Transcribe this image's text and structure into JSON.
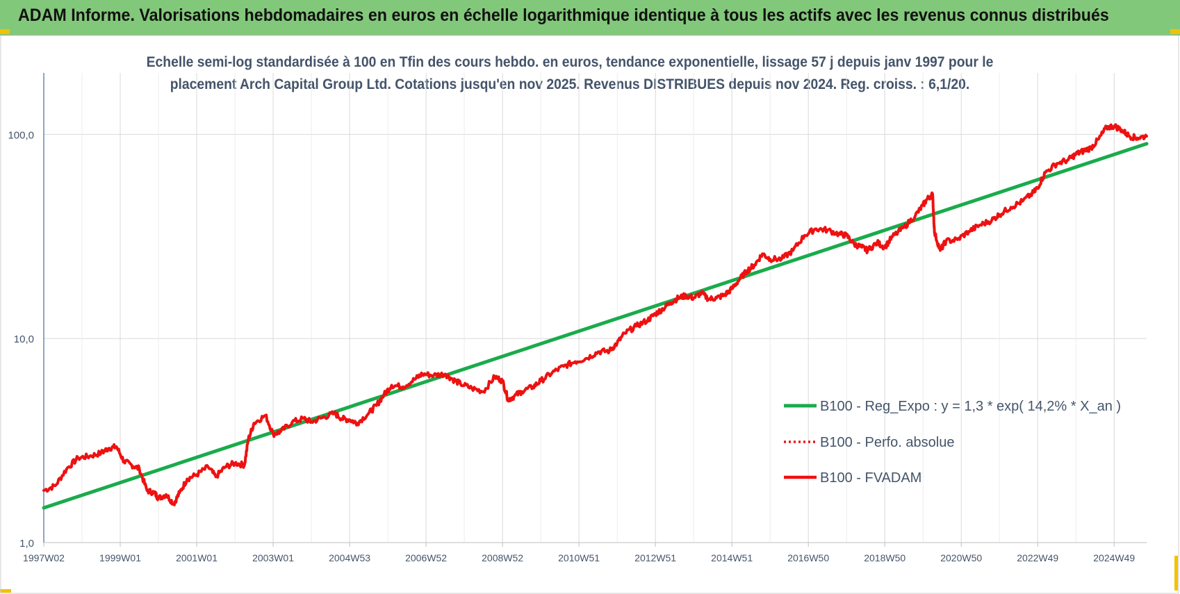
{
  "header": {
    "title": "ADAM Informe. Valorisations hebdomadaires en euros en échelle logarithmique identique à tous les actifs avec les revenus connus distribués"
  },
  "colors": {
    "banner": "#82c87a",
    "regression": "#1aab4b",
    "fvadam": "#ee1111",
    "perfo": "#ee1111",
    "accent_corners": "#f2c200",
    "grid": "#d9d9d9",
    "text": "#44546a"
  },
  "chart_data": {
    "type": "line",
    "subtitle_lines": [
      "Echelle semi-log standardisée à 100 en Tfin des cours hebdo. en euros, tendance exponentielle, lissage 57 j depuis janv 1997 pour le",
      "placement Arch Capital Group Ltd. Cotations jusqu'en nov 2025. Revenus DISTRIBUES depuis nov 2024.  Reg. croiss. : 6,1/20."
    ],
    "y_scale": "log",
    "ylim": [
      1,
      200
    ],
    "y_ticks": [
      {
        "value": 1,
        "label": "1,0"
      },
      {
        "value": 10,
        "label": "10,0"
      },
      {
        "value": 100,
        "label": "100,0"
      }
    ],
    "xlim": [
      1997.0,
      2025.85
    ],
    "x_ticks": [
      {
        "value": 1997.0,
        "label": "1997W02"
      },
      {
        "value": 1999.0,
        "label": "1999W01"
      },
      {
        "value": 2001.0,
        "label": "2001W01"
      },
      {
        "value": 2003.0,
        "label": "2003W01"
      },
      {
        "value": 2005.0,
        "label": "2004W53"
      },
      {
        "value": 2007.0,
        "label": "2006W52"
      },
      {
        "value": 2009.0,
        "label": "2008W52"
      },
      {
        "value": 2011.0,
        "label": "2010W51"
      },
      {
        "value": 2013.0,
        "label": "2012W51"
      },
      {
        "value": 2015.0,
        "label": "2014W51"
      },
      {
        "value": 2017.0,
        "label": "2016W50"
      },
      {
        "value": 2019.0,
        "label": "2018W50"
      },
      {
        "value": 2021.0,
        "label": "2020W50"
      },
      {
        "value": 2023.0,
        "label": "2022W49"
      },
      {
        "value": 2025.0,
        "label": "2024W49"
      }
    ],
    "grid": true,
    "legend_position": "right",
    "series": [
      {
        "name": "B100 - Reg_Expo : y = 1,3 * exp( 14,2% *  X_an )",
        "style": "solid",
        "color": "#1aab4b",
        "points": [
          [
            1997.0,
            1.48
          ],
          [
            2025.85,
            90.0
          ]
        ]
      },
      {
        "name": "B100 - Perfo. absolue",
        "style": "dotted",
        "color": "#ee1111",
        "points": []
      },
      {
        "name": "B100 - FVADAM",
        "style": "solid",
        "color": "#ee1111",
        "points": [
          [
            1997.0,
            1.8
          ],
          [
            1997.3,
            1.9
          ],
          [
            1997.6,
            2.3
          ],
          [
            1997.9,
            2.6
          ],
          [
            1998.2,
            2.65
          ],
          [
            1998.5,
            2.75
          ],
          [
            1998.7,
            2.9
          ],
          [
            1998.9,
            2.95
          ],
          [
            1999.1,
            2.5
          ],
          [
            1999.3,
            2.4
          ],
          [
            1999.5,
            2.3
          ],
          [
            1999.7,
            1.8
          ],
          [
            1999.9,
            1.75
          ],
          [
            2000.0,
            1.65
          ],
          [
            2000.2,
            1.72
          ],
          [
            2000.4,
            1.55
          ],
          [
            2000.55,
            1.75
          ],
          [
            2000.75,
            2.05
          ],
          [
            2001.0,
            2.15
          ],
          [
            2001.3,
            2.35
          ],
          [
            2001.5,
            2.1
          ],
          [
            2001.75,
            2.35
          ],
          [
            2002.0,
            2.45
          ],
          [
            2002.25,
            2.4
          ],
          [
            2002.35,
            3.2
          ],
          [
            2002.5,
            3.85
          ],
          [
            2002.8,
            4.2
          ],
          [
            2003.0,
            3.4
          ],
          [
            2003.2,
            3.5
          ],
          [
            2003.5,
            3.9
          ],
          [
            2003.8,
            4.05
          ],
          [
            2004.0,
            3.9
          ],
          [
            2004.3,
            4.1
          ],
          [
            2004.6,
            4.3
          ],
          [
            2004.8,
            4.05
          ],
          [
            2005.0,
            4.0
          ],
          [
            2005.2,
            3.85
          ],
          [
            2005.5,
            4.3
          ],
          [
            2005.7,
            4.7
          ],
          [
            2005.9,
            5.3
          ],
          [
            2006.1,
            5.9
          ],
          [
            2006.4,
            5.8
          ],
          [
            2006.7,
            6.3
          ],
          [
            2006.9,
            6.7
          ],
          [
            2007.2,
            6.6
          ],
          [
            2007.5,
            6.7
          ],
          [
            2007.7,
            6.3
          ],
          [
            2007.9,
            6.0
          ],
          [
            2008.2,
            5.7
          ],
          [
            2008.5,
            5.5
          ],
          [
            2008.8,
            6.5
          ],
          [
            2009.0,
            6.2
          ],
          [
            2009.15,
            5.0
          ],
          [
            2009.3,
            5.2
          ],
          [
            2009.5,
            5.5
          ],
          [
            2009.8,
            5.8
          ],
          [
            2010.0,
            6.2
          ],
          [
            2010.3,
            6.8
          ],
          [
            2010.6,
            7.3
          ],
          [
            2010.9,
            7.7
          ],
          [
            2011.2,
            8.0
          ],
          [
            2011.5,
            8.6
          ],
          [
            2011.8,
            8.7
          ],
          [
            2012.0,
            9.5
          ],
          [
            2012.2,
            10.6
          ],
          [
            2012.5,
            11.5
          ],
          [
            2012.8,
            12.3
          ],
          [
            2013.0,
            13.2
          ],
          [
            2013.2,
            14.0
          ],
          [
            2013.4,
            15.0
          ],
          [
            2013.6,
            15.8
          ],
          [
            2013.8,
            16.2
          ],
          [
            2014.0,
            15.8
          ],
          [
            2014.2,
            16.7
          ],
          [
            2014.4,
            15.6
          ],
          [
            2014.6,
            15.8
          ],
          [
            2014.8,
            16.3
          ],
          [
            2015.0,
            17.5
          ],
          [
            2015.2,
            19.5
          ],
          [
            2015.4,
            21.5
          ],
          [
            2015.6,
            23.0
          ],
          [
            2015.8,
            26.0
          ],
          [
            2016.0,
            24.5
          ],
          [
            2016.3,
            24.5
          ],
          [
            2016.6,
            27.0
          ],
          [
            2016.9,
            32.0
          ],
          [
            2017.2,
            34.5
          ],
          [
            2017.5,
            34.0
          ],
          [
            2017.8,
            32.5
          ],
          [
            2018.0,
            32.0
          ],
          [
            2018.2,
            29.0
          ],
          [
            2018.4,
            28.0
          ],
          [
            2018.55,
            27.0
          ],
          [
            2018.8,
            29.5
          ],
          [
            2019.0,
            28.0
          ],
          [
            2019.2,
            31.5
          ],
          [
            2019.5,
            35.0
          ],
          [
            2019.8,
            40.0
          ],
          [
            2020.0,
            45.0
          ],
          [
            2020.1,
            48.0
          ],
          [
            2020.25,
            51.0
          ],
          [
            2020.3,
            33.0
          ],
          [
            2020.45,
            27.0
          ],
          [
            2020.6,
            30.0
          ],
          [
            2020.9,
            30.5
          ],
          [
            2021.2,
            33.5
          ],
          [
            2021.5,
            36.0
          ],
          [
            2021.8,
            38.0
          ],
          [
            2022.0,
            40.5
          ],
          [
            2022.3,
            44.0
          ],
          [
            2022.6,
            47.0
          ],
          [
            2022.9,
            52.0
          ],
          [
            2023.0,
            55.0
          ],
          [
            2023.2,
            65.0
          ],
          [
            2023.5,
            72.0
          ],
          [
            2023.8,
            75.0
          ],
          [
            2024.0,
            80.0
          ],
          [
            2024.2,
            83.0
          ],
          [
            2024.4,
            86.0
          ],
          [
            2024.6,
            95.0
          ],
          [
            2024.8,
            108.0
          ],
          [
            2025.0,
            110.0
          ],
          [
            2025.2,
            105.0
          ],
          [
            2025.4,
            98.0
          ],
          [
            2025.6,
            96.0
          ],
          [
            2025.85,
            98.0
          ]
        ]
      }
    ]
  }
}
